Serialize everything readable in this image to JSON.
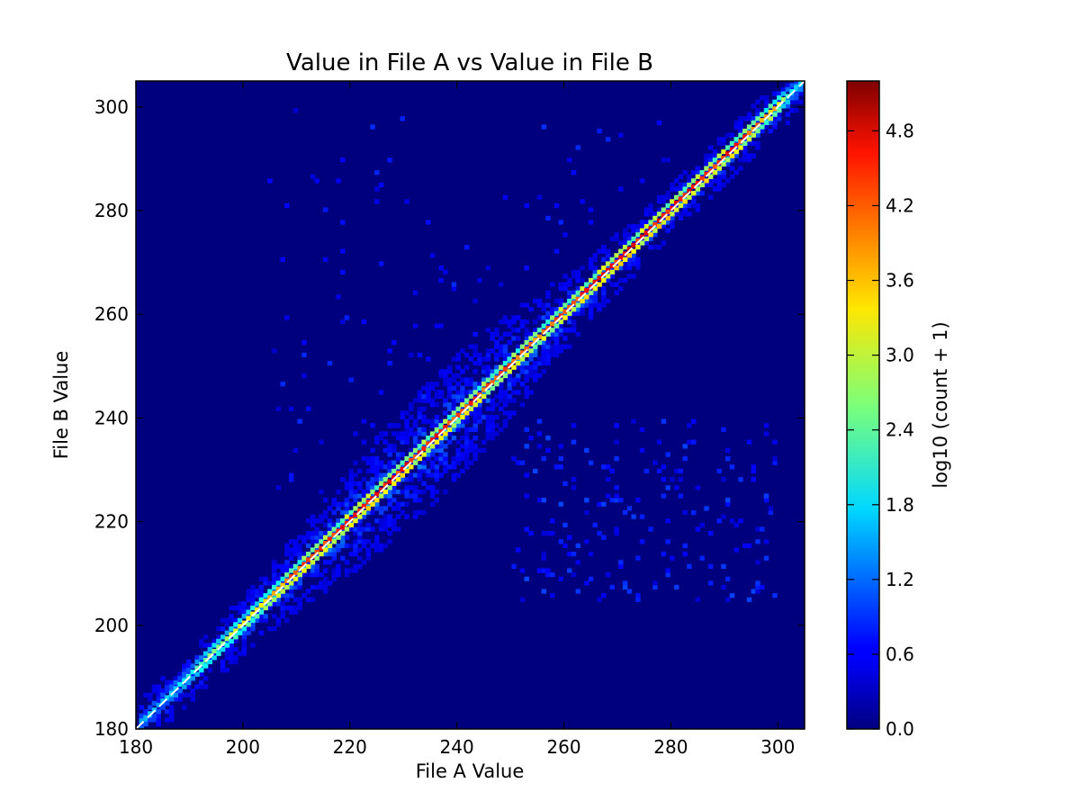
{
  "chart_data": {
    "type": "heatmap",
    "title": "Value in File A vs Value in File B",
    "xlabel": "File A Value",
    "ylabel": "File B Value",
    "xlim": [
      180,
      305
    ],
    "ylim": [
      180,
      305
    ],
    "x_ticks": [
      180,
      200,
      220,
      240,
      260,
      280,
      300
    ],
    "y_ticks": [
      180,
      200,
      220,
      240,
      260,
      280,
      300
    ],
    "grid": false,
    "reference_line": {
      "style": "dashed",
      "color": "#ffffff",
      "from": [
        180,
        180
      ],
      "to": [
        305,
        305
      ]
    },
    "colorbar": {
      "label": "log10 (count + 1)",
      "colormap": "jet",
      "range": [
        0.0,
        5.2
      ],
      "ticks": [
        "0.0",
        "0.6",
        "1.2",
        "1.8",
        "2.4",
        "3.0",
        "3.6",
        "4.2",
        "4.8"
      ]
    },
    "background_color": "#00007f",
    "diagonal_profile": [
      {
        "x": 181,
        "v": 1.6
      },
      {
        "x": 185,
        "v": 1.7
      },
      {
        "x": 188,
        "v": 1.9
      },
      {
        "x": 192,
        "v": 2.6
      },
      {
        "x": 196,
        "v": 3.0
      },
      {
        "x": 200,
        "v": 3.4
      },
      {
        "x": 204,
        "v": 3.8
      },
      {
        "x": 208,
        "v": 4.2
      },
      {
        "x": 212,
        "v": 4.6
      },
      {
        "x": 216,
        "v": 4.8
      },
      {
        "x": 220,
        "v": 4.9
      },
      {
        "x": 226,
        "v": 4.7
      },
      {
        "x": 230,
        "v": 4.8
      },
      {
        "x": 236,
        "v": 4.7
      },
      {
        "x": 240,
        "v": 4.6
      },
      {
        "x": 246,
        "v": 4.5
      },
      {
        "x": 250,
        "v": 4.4
      },
      {
        "x": 256,
        "v": 4.2
      },
      {
        "x": 260,
        "v": 4.6
      },
      {
        "x": 266,
        "v": 4.8
      },
      {
        "x": 270,
        "v": 4.9
      },
      {
        "x": 276,
        "v": 4.8
      },
      {
        "x": 280,
        "v": 4.9
      },
      {
        "x": 286,
        "v": 4.7
      },
      {
        "x": 290,
        "v": 4.8
      },
      {
        "x": 296,
        "v": 4.3
      },
      {
        "x": 300,
        "v": 3.6
      },
      {
        "x": 303,
        "v": 1.8
      }
    ]
  }
}
